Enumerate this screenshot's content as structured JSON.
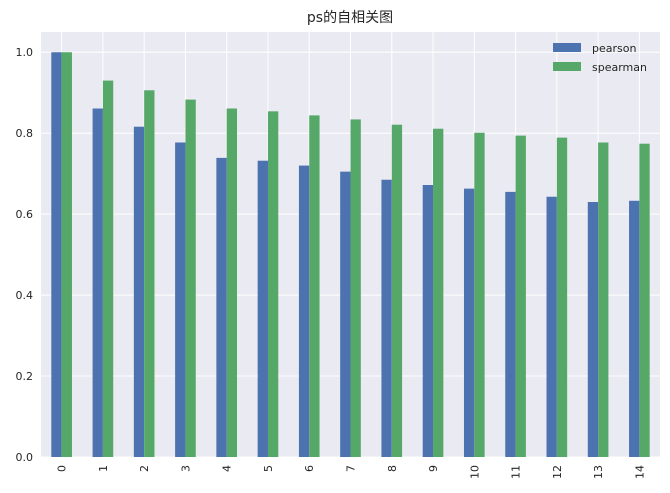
{
  "chart_data": {
    "type": "bar",
    "title": "ps的自相关图",
    "xlabel": "",
    "ylabel": "",
    "categories": [
      "0",
      "1",
      "2",
      "3",
      "4",
      "5",
      "6",
      "7",
      "8",
      "9",
      "10",
      "11",
      "12",
      "13",
      "14"
    ],
    "series": [
      {
        "name": "pearson",
        "color": "#4c72b0",
        "values": [
          1.0,
          0.861,
          0.816,
          0.777,
          0.739,
          0.732,
          0.72,
          0.705,
          0.685,
          0.672,
          0.663,
          0.655,
          0.643,
          0.63,
          0.633
        ]
      },
      {
        "name": "spearman",
        "color": "#55a868",
        "values": [
          1.0,
          0.93,
          0.906,
          0.883,
          0.861,
          0.854,
          0.844,
          0.834,
          0.821,
          0.811,
          0.801,
          0.794,
          0.789,
          0.777,
          0.774
        ]
      }
    ],
    "ylim": [
      0,
      1.05
    ],
    "yticks": [
      "0.0",
      "0.2",
      "0.4",
      "0.6",
      "0.8",
      "1.0"
    ],
    "grid": true,
    "legend_position": "top-right",
    "background": "#eaeaf2"
  }
}
